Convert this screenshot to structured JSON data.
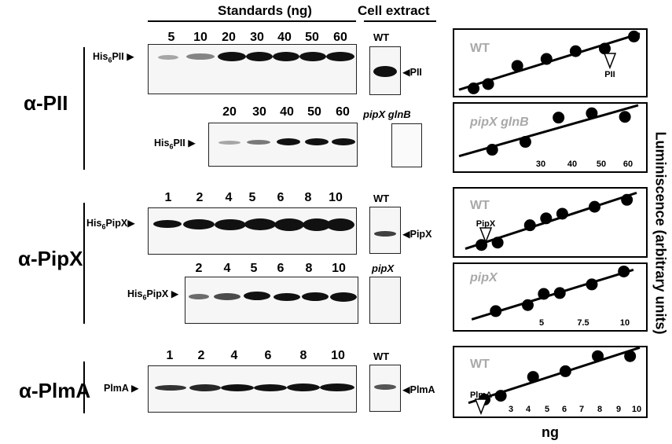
{
  "header": {
    "standards_label": "Standards (ng)",
    "cell_extract_label": "Cell extract"
  },
  "sections": {
    "pii": {
      "antibody": "α-PII",
      "blot1": {
        "lanes": [
          "5",
          "10",
          "20",
          "30",
          "40",
          "50",
          "60"
        ],
        "standard_label_main": "His",
        "standard_label_sub": "6",
        "standard_label_tail": "PII",
        "extract_lane": "WT",
        "extract_band": "PII"
      },
      "blot2": {
        "lanes": [
          "20",
          "30",
          "40",
          "50",
          "60"
        ],
        "standard_label_main": "His",
        "standard_label_sub": "6",
        "standard_label_tail": "PII",
        "extract_lane": "pipX glnB"
      }
    },
    "pipx": {
      "antibody": "α-PipX",
      "blot1": {
        "lanes": [
          "1",
          "2",
          "4",
          "5",
          "6",
          "8",
          "10"
        ],
        "standard_label_main": "His",
        "standard_label_sub": "6",
        "standard_label_tail": "PipX",
        "extract_lane": "WT",
        "extract_band": "PipX"
      },
      "blot2": {
        "lanes": [
          "2",
          "4",
          "5",
          "6",
          "8",
          "10"
        ],
        "standard_label_main": "His",
        "standard_label_sub": "6",
        "standard_label_tail": "PipX",
        "extract_lane": "pipX"
      }
    },
    "plma": {
      "antibody": "α-PlmA",
      "blot1": {
        "lanes": [
          "1",
          "2",
          "4",
          "6",
          "8",
          "10"
        ],
        "standard_label": "PlmA",
        "extract_lane": "WT",
        "extract_band": "PlmA"
      }
    }
  },
  "plots": {
    "y_axis_label": "Luminiscence (arbitrary units)",
    "x_axis_label": "ng",
    "pii_wt": {
      "label": "WT",
      "marker": "PII",
      "ticks": []
    },
    "pii_mut": {
      "label": "pipX glnB",
      "ticks": [
        "30",
        "40",
        "50",
        "60"
      ]
    },
    "pipx_wt": {
      "label": "WT",
      "marker": "PipX",
      "ticks": []
    },
    "pipx_mut": {
      "label": "pipX",
      "ticks": [
        "5",
        "7.5",
        "10"
      ]
    },
    "plma_wt": {
      "label": "WT",
      "marker": "PlmA",
      "ticks": [
        "3",
        "4",
        "5",
        "6",
        "7",
        "8",
        "9",
        "10"
      ]
    }
  },
  "chart_data": [
    {
      "type": "scatter",
      "title": "WT",
      "x": [
        5,
        10,
        20,
        30,
        40,
        50,
        60
      ],
      "y": [
        1.0,
        1.5,
        3.6,
        4.4,
        5.3,
        5.6,
        7.0
      ],
      "fit": "linear",
      "marker_label": "PII"
    },
    {
      "type": "scatter",
      "title": "pipX glnB",
      "x": [
        20,
        30,
        40,
        50,
        60
      ],
      "y": [
        1.2,
        2.3,
        5.7,
        6.3,
        5.8
      ],
      "fit": "linear",
      "x_tick_labels": [
        "30",
        "40",
        "50",
        "60"
      ]
    },
    {
      "type": "scatter",
      "title": "WT",
      "x": [
        1,
        2,
        4,
        5,
        6,
        8,
        10
      ],
      "y": [
        1.6,
        1.8,
        3.3,
        3.9,
        4.3,
        4.9,
        5.5
      ],
      "fit": "linear",
      "marker_label": "PipX"
    },
    {
      "type": "scatter",
      "title": "pipX",
      "x": [
        2,
        4,
        5,
        6,
        8,
        10
      ],
      "y": [
        1.7,
        2.4,
        3.7,
        3.8,
        4.8,
        6.3
      ],
      "fit": "linear",
      "x_tick_labels": [
        "5",
        "7.5",
        "10"
      ]
    },
    {
      "type": "scatter",
      "title": "WT",
      "x": [
        1,
        2,
        4,
        6,
        8,
        10
      ],
      "y": [
        1.3,
        1.5,
        2.5,
        2.8,
        3.6,
        3.6
      ],
      "fit": "linear",
      "marker_label": "PlmA",
      "x_tick_labels": [
        "3",
        "4",
        "5",
        "6",
        "7",
        "8",
        "9",
        "10"
      ]
    }
  ]
}
